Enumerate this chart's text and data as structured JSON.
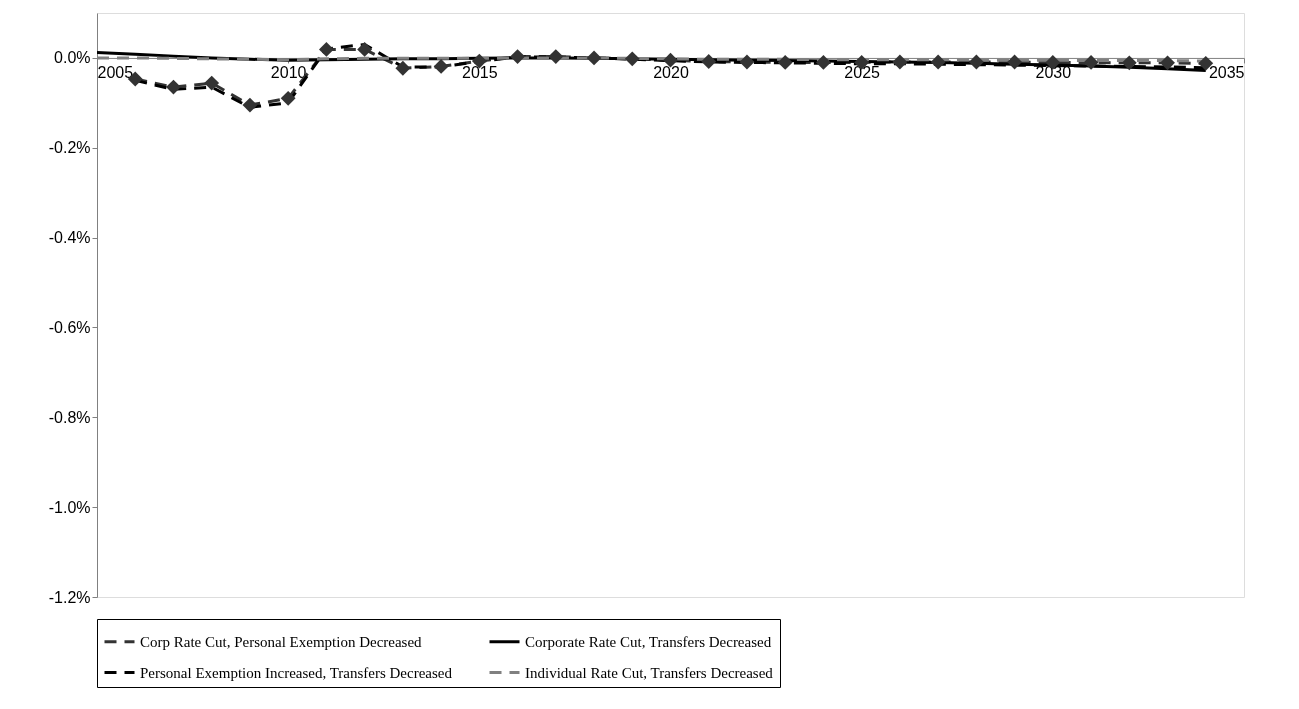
{
  "chart_data": {
    "type": "line",
    "x": [
      2005,
      2006,
      2007,
      2008,
      2009,
      2010,
      2011,
      2012,
      2013,
      2014,
      2015,
      2016,
      2017,
      2018,
      2019,
      2020,
      2021,
      2022,
      2023,
      2024,
      2025,
      2026,
      2027,
      2028,
      2029,
      2030,
      2031,
      2032,
      2033,
      2034
    ],
    "series": [
      {
        "name": "Corp Rate Cut, Personal Exemption Decreased",
        "color": "#333333",
        "marker": "diamond",
        "line_style": "dashed",
        "values": [
          null,
          -0.047,
          -0.065,
          -0.056,
          -0.105,
          -0.09,
          0.019,
          0.019,
          -0.023,
          -0.019,
          -0.007,
          0.003,
          0.003,
          0.0,
          -0.002,
          -0.005,
          -0.008,
          -0.009,
          -0.01,
          -0.01,
          -0.01,
          -0.009,
          -0.009,
          -0.009,
          -0.009,
          -0.01,
          -0.01,
          -0.011,
          -0.011,
          -0.012
        ]
      },
      {
        "name": "Corporate Rate Cut, Transfers Decreased",
        "color": "#000000",
        "marker": "none",
        "line_style": "solid",
        "values": [
          0.012,
          0.008,
          0.004,
          0.0,
          -0.003,
          -0.005,
          -0.004,
          -0.003,
          -0.002,
          -0.002,
          -0.001,
          0.0,
          0.0,
          -0.001,
          -0.002,
          -0.003,
          -0.004,
          -0.005,
          -0.006,
          -0.007,
          -0.008,
          -0.009,
          -0.01,
          -0.012,
          -0.014,
          -0.016,
          -0.018,
          -0.021,
          -0.024,
          -0.028
        ]
      },
      {
        "name": "Personal Exemption Increased, Transfers Decreased",
        "color": "#000000",
        "marker": "none",
        "line_style": "dashed",
        "values": [
          null,
          -0.05,
          -0.07,
          -0.065,
          -0.11,
          -0.1,
          0.02,
          0.03,
          -0.02,
          -0.02,
          -0.008,
          0.002,
          0.002,
          0.0,
          -0.003,
          -0.006,
          -0.009,
          -0.01,
          -0.011,
          -0.012,
          -0.013,
          -0.013,
          -0.014,
          -0.015,
          -0.016,
          -0.017,
          -0.018,
          -0.019,
          -0.02,
          -0.022
        ]
      },
      {
        "name": "Individual Rate Cut, Transfers Decreased",
        "color": "#808080",
        "marker": "none",
        "line_style": "dashed",
        "values": [
          0.0,
          0.0,
          -0.001,
          -0.002,
          -0.003,
          -0.004,
          -0.002,
          -0.001,
          -0.001,
          -0.001,
          -0.001,
          0.0,
          0.0,
          0.0,
          -0.001,
          -0.002,
          -0.003,
          -0.003,
          -0.003,
          -0.004,
          -0.004,
          -0.004,
          -0.004,
          -0.005,
          -0.005,
          -0.005,
          -0.006,
          -0.006,
          -0.006,
          -0.007
        ]
      }
    ],
    "xlim": [
      2005,
      2035
    ],
    "xticks": [
      2005,
      2010,
      2015,
      2020,
      2025,
      2030,
      2035
    ],
    "ylim": [
      -1.2,
      0.1
    ],
    "yticks": [
      {
        "value": -1.2,
        "label": "-1.2%"
      },
      {
        "value": -1.0,
        "label": "-1.0%"
      },
      {
        "value": -0.8,
        "label": "-0.8%"
      },
      {
        "value": -0.6,
        "label": "-0.6%"
      },
      {
        "value": -0.4,
        "label": "-0.4%"
      },
      {
        "value": -0.2,
        "label": "-0.2%"
      },
      {
        "value": 0.0,
        "label": "0.0%"
      }
    ],
    "grid": false,
    "legend": "bottom"
  }
}
